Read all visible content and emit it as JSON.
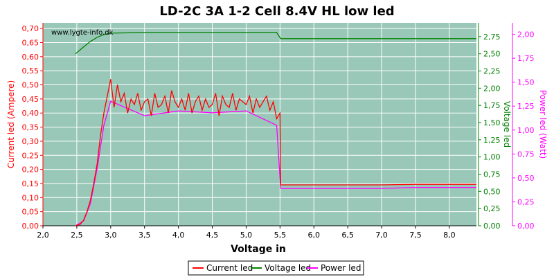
{
  "title": "LD-2C 3A 1-2 Cell 8.4V HL low led",
  "watermark": "www.lygte-info.dk",
  "colors": {
    "plot_bg": "#99c8b8",
    "grid": "#ffffff",
    "current": "#ff0000",
    "voltage": "#008000",
    "power": "#ff00ff"
  },
  "chart_data": {
    "type": "line",
    "xlabel": "Voltage in",
    "xlim": [
      2.0,
      8.4
    ],
    "x_ticks": [
      "2,0",
      "2,5",
      "3,0",
      "3,5",
      "4,0",
      "4,5",
      "5,0",
      "5,5",
      "6,0",
      "6,5",
      "7,0",
      "7,5",
      "8,0"
    ],
    "axes": {
      "current": {
        "label": "Current led (Ampere)",
        "ylim": [
          0,
          0.72
        ],
        "ticks": [
          "0,00",
          "0,05",
          "0,10",
          "0,15",
          "0,20",
          "0,25",
          "0,30",
          "0,35",
          "0,40",
          "0,45",
          "0,50",
          "0,55",
          "0,60",
          "0,65",
          "0,70"
        ]
      },
      "voltage": {
        "label": "Voltage led",
        "ylim": [
          0,
          2.95
        ],
        "ticks": [
          "0,00",
          "0,25",
          "0,50",
          "0,75",
          "1,00",
          "1,25",
          "1,50",
          "1,75",
          "2,00",
          "2,25",
          "2,50",
          "2,75"
        ]
      },
      "power": {
        "label": "Power led (Watt)",
        "ylim": [
          0,
          2.12
        ],
        "ticks": [
          "0,00",
          "0,25",
          "0,50",
          "0,75",
          "1,00",
          "1,25",
          "1,50",
          "1,75",
          "2,00"
        ]
      }
    },
    "series": [
      {
        "name": "Current led",
        "axis": "current",
        "x": [
          2.48,
          2.55,
          2.6,
          2.65,
          2.7,
          2.75,
          2.8,
          2.85,
          2.9,
          2.95,
          3.0,
          3.05,
          3.1,
          3.15,
          3.2,
          3.25,
          3.3,
          3.35,
          3.4,
          3.45,
          3.5,
          3.55,
          3.6,
          3.65,
          3.7,
          3.75,
          3.8,
          3.85,
          3.9,
          3.95,
          4.0,
          4.05,
          4.1,
          4.15,
          4.2,
          4.25,
          4.3,
          4.35,
          4.4,
          4.45,
          4.5,
          4.55,
          4.6,
          4.65,
          4.7,
          4.75,
          4.8,
          4.85,
          4.9,
          4.95,
          5.0,
          5.05,
          5.1,
          5.15,
          5.2,
          5.25,
          5.3,
          5.35,
          5.4,
          5.45,
          5.5,
          5.51,
          6.0,
          7.0,
          7.5,
          8.0,
          8.4
        ],
        "y": [
          0.0,
          0.005,
          0.02,
          0.05,
          0.09,
          0.15,
          0.22,
          0.32,
          0.4,
          0.46,
          0.52,
          0.42,
          0.5,
          0.44,
          0.47,
          0.4,
          0.45,
          0.43,
          0.47,
          0.41,
          0.44,
          0.45,
          0.39,
          0.47,
          0.42,
          0.43,
          0.46,
          0.4,
          0.48,
          0.44,
          0.42,
          0.45,
          0.41,
          0.47,
          0.4,
          0.44,
          0.46,
          0.41,
          0.45,
          0.42,
          0.43,
          0.47,
          0.39,
          0.46,
          0.43,
          0.42,
          0.47,
          0.41,
          0.45,
          0.44,
          0.43,
          0.46,
          0.4,
          0.45,
          0.42,
          0.44,
          0.46,
          0.41,
          0.44,
          0.38,
          0.4,
          0.145,
          0.145,
          0.145,
          0.147,
          0.147,
          0.147
        ]
      },
      {
        "name": "Voltage led",
        "axis": "voltage",
        "x": [
          2.48,
          2.6,
          2.7,
          2.8,
          2.9,
          3.0,
          3.5,
          4.0,
          4.5,
          5.0,
          5.45,
          5.51,
          6.0,
          7.0,
          8.0,
          8.4
        ],
        "y": [
          2.5,
          2.6,
          2.68,
          2.74,
          2.78,
          2.8,
          2.81,
          2.81,
          2.81,
          2.81,
          2.81,
          2.72,
          2.72,
          2.72,
          2.72,
          2.72
        ]
      },
      {
        "name": "Power led",
        "axis": "power",
        "x": [
          2.48,
          2.6,
          2.7,
          2.8,
          2.9,
          3.0,
          3.5,
          4.0,
          4.5,
          5.0,
          5.45,
          5.51,
          6.0,
          7.0,
          7.5,
          8.0,
          8.4
        ],
        "y": [
          0.0,
          0.05,
          0.23,
          0.6,
          1.05,
          1.3,
          1.15,
          1.2,
          1.18,
          1.2,
          1.05,
          0.39,
          0.39,
          0.39,
          0.4,
          0.4,
          0.4
        ]
      }
    ],
    "legend": {
      "placement": "bottom",
      "items": [
        "Current led",
        "Voltage led",
        "Power led"
      ]
    },
    "grid": true
  }
}
